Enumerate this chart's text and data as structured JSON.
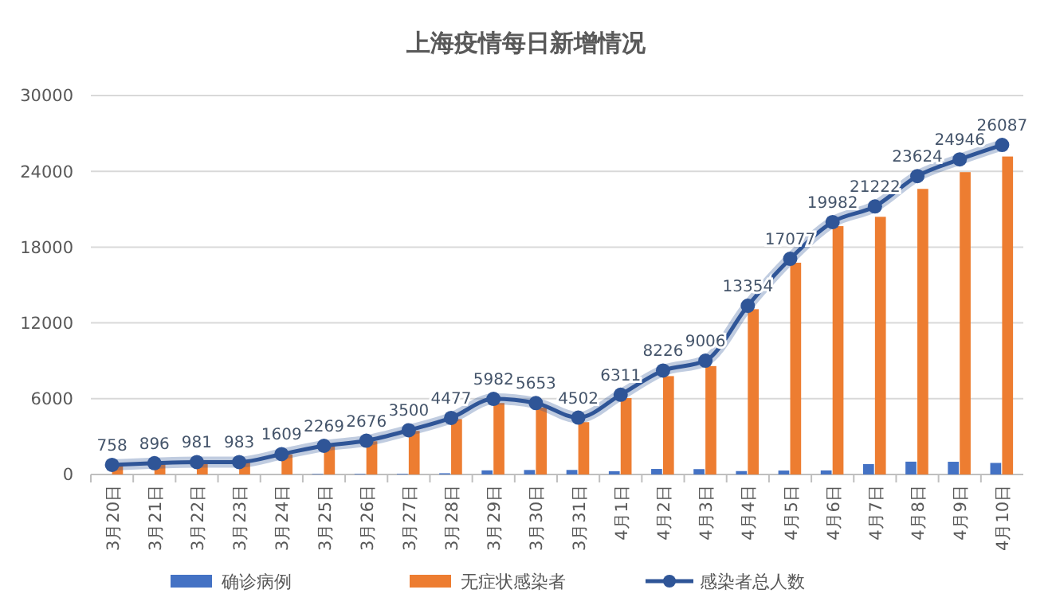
{
  "chart_data": {
    "type": "bar",
    "title": "上海疫情每日新增情况",
    "categories": [
      "3月20日",
      "3月21日",
      "3月22日",
      "3月23日",
      "3月24日",
      "3月25日",
      "3月26日",
      "3月27日",
      "3月28日",
      "3月29日",
      "3月30日",
      "3月31日",
      "4月1日",
      "4月2日",
      "4月3日",
      "4月4日",
      "4月5日",
      "4月6日",
      "4月7日",
      "4月8日",
      "4月9日",
      "4月10日"
    ],
    "series": [
      {
        "name": "确诊病例",
        "color": "#4472c4",
        "values": [
          null,
          null,
          null,
          null,
          null,
          38,
          45,
          50,
          96,
          326,
          355,
          358,
          260,
          438,
          425,
          268,
          311,
          322,
          824,
          1015,
          1006,
          914
        ]
      },
      {
        "name": "无症状感染者",
        "color": "#ed7d31",
        "values": [
          734,
          865,
          977,
          979,
          1580,
          2231,
          2631,
          3450,
          4381,
          5656,
          5298,
          4144,
          6051,
          7788,
          8581,
          13086,
          16766,
          19660,
          20398,
          22609,
          23937,
          25173
        ]
      },
      {
        "name": "感染者总人数",
        "type": "line",
        "color": "#2f5597",
        "marker": "circle",
        "data_labels": true,
        "values": [
          758,
          896,
          981,
          983,
          1609,
          2269,
          2676,
          3500,
          4477,
          5982,
          5653,
          4502,
          6311,
          8226,
          9006,
          13354,
          17077,
          19982,
          21222,
          23624,
          24946,
          26087
        ]
      }
    ],
    "ylim": [
      0,
      30000
    ],
    "yticks": [
      0,
      6000,
      12000,
      18000,
      24000,
      30000
    ],
    "grid": "y",
    "legend": "bottom"
  }
}
